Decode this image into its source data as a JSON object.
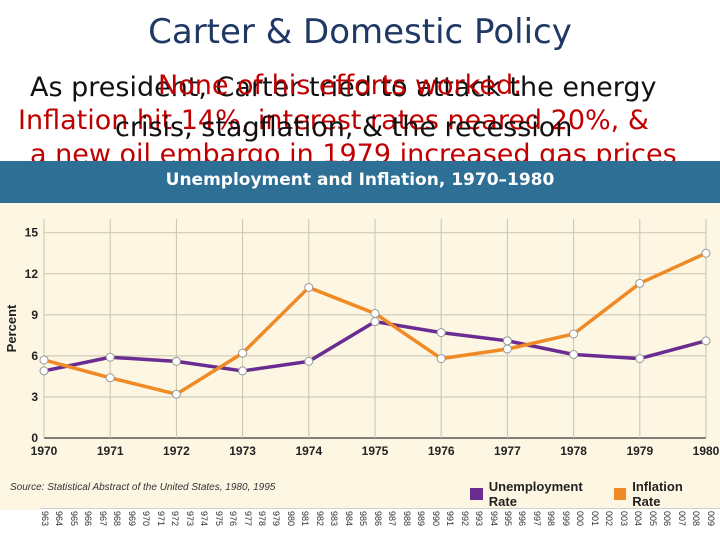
{
  "slide": {
    "title": "Carter & Domestic Policy",
    "line_as_president": "As president, Carter tried to attack the energy",
    "line_none_worked": "None of his efforts worked:",
    "line_inflation": "Inflation hit 14%, interest rates neared 20%, &",
    "line_crisis": "crisis, stagflation, & the recession",
    "line_oil_embargo": "a new oil embargo in 1979 increased gas prices"
  },
  "chart_data": {
    "type": "line",
    "title": "Unemployment and Inflation, 1970–1980",
    "ylabel": "Percent",
    "xlabel": "",
    "x": [
      "1970",
      "1971",
      "1972",
      "1973",
      "1974",
      "1975",
      "1976",
      "1977",
      "1978",
      "1979",
      "1980"
    ],
    "yticks": [
      0,
      3,
      6,
      9,
      12,
      15
    ],
    "ylim": [
      0,
      16
    ],
    "grid": true,
    "legend": "bottom-right",
    "series": [
      {
        "name": "Unemployment Rate",
        "color": "#6a2c91",
        "values": [
          4.9,
          5.9,
          5.6,
          4.9,
          5.6,
          8.5,
          7.7,
          7.1,
          6.1,
          5.8,
          7.1
        ]
      },
      {
        "name": "Inflation Rate",
        "color": "#f08a24",
        "values": [
          5.7,
          4.4,
          3.2,
          6.2,
          11.0,
          9.1,
          5.8,
          6.5,
          7.6,
          11.3,
          13.5
        ]
      }
    ],
    "source": "Source: Statistical Abstract of the United States, 1980, 1995"
  },
  "year_strip": [
    "963",
    "964",
    "965",
    "966",
    "967",
    "968",
    "969",
    "970",
    "971",
    "972",
    "973",
    "974",
    "975",
    "976",
    "977",
    "978",
    "979",
    "980",
    "981",
    "982",
    "983",
    "984",
    "985",
    "986",
    "987",
    "988",
    "989",
    "990",
    "991",
    "992",
    "993",
    "994",
    "995",
    "996",
    "997",
    "998",
    "999",
    "000",
    "001",
    "002",
    "003",
    "004",
    "005",
    "006",
    "007",
    "008",
    "009"
  ]
}
